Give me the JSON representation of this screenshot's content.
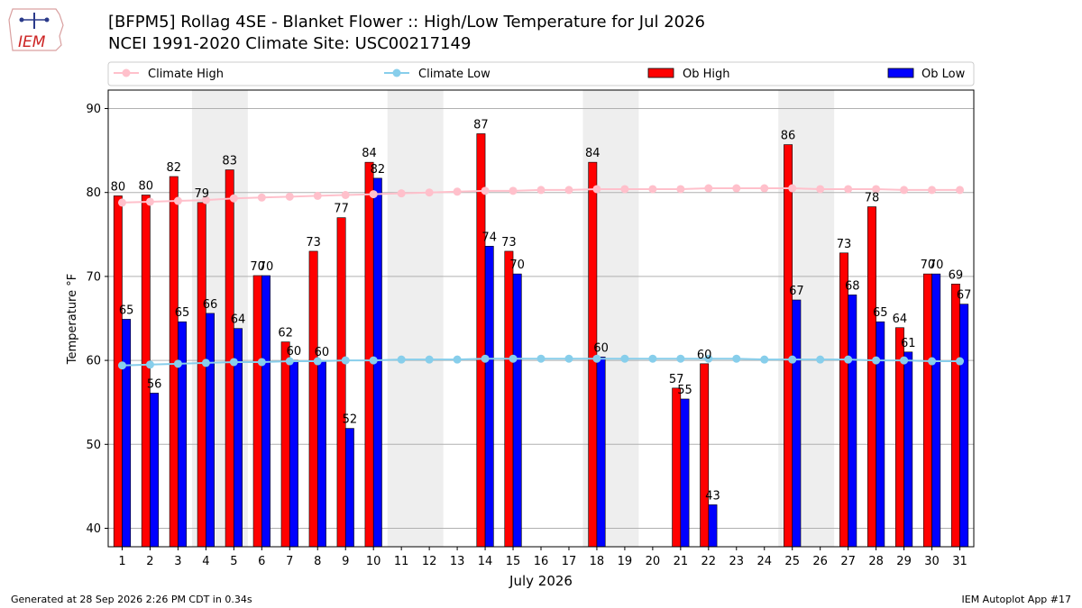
{
  "header": {
    "title_line1": "[BFPM5] Rollag 4SE - Blanket Flower :: High/Low Temperature for Jul 2026",
    "title_line2": "NCEI 1991-2020 Climate Site: USC00217149",
    "logo_text": "IEM"
  },
  "footer": {
    "generated": "Generated at 28 Sep 2026 2:26 PM CDT in 0.34s",
    "app": "IEM Autoplot App #17"
  },
  "colors": {
    "ob_high": "#ff0000",
    "ob_low": "#0000ff",
    "climate_high": "#ffc0cb",
    "climate_low": "#87ceeb",
    "weekend_shade": "#eeeeee",
    "grid": "#b0b0b0"
  },
  "chart_data": {
    "type": "bar",
    "xlabel": "July 2026",
    "ylabel": "Temperature °F",
    "ylim": [
      37.8,
      92.2
    ],
    "yticks": [
      40,
      50,
      60,
      70,
      80,
      90
    ],
    "grid": true,
    "legend_position": "top",
    "days": [
      1,
      2,
      3,
      4,
      5,
      6,
      7,
      8,
      9,
      10,
      11,
      12,
      13,
      14,
      15,
      16,
      17,
      18,
      19,
      20,
      21,
      22,
      23,
      24,
      25,
      26,
      27,
      28,
      29,
      30,
      31
    ],
    "shaded_days": [
      [
        4,
        5
      ],
      [
        11,
        12
      ],
      [
        18,
        19
      ],
      [
        25,
        26
      ]
    ],
    "series": [
      {
        "name": "Climate High",
        "kind": "line",
        "values": [
          78.8,
          78.9,
          79.0,
          79.1,
          79.3,
          79.4,
          79.5,
          79.6,
          79.7,
          79.8,
          79.9,
          80.0,
          80.1,
          80.2,
          80.2,
          80.3,
          80.3,
          80.4,
          80.4,
          80.4,
          80.4,
          80.5,
          80.5,
          80.5,
          80.5,
          80.4,
          80.4,
          80.4,
          80.3,
          80.3,
          80.3
        ]
      },
      {
        "name": "Climate Low",
        "kind": "line",
        "values": [
          59.4,
          59.5,
          59.6,
          59.7,
          59.8,
          59.8,
          59.9,
          59.9,
          60.0,
          60.0,
          60.1,
          60.1,
          60.1,
          60.2,
          60.2,
          60.2,
          60.2,
          60.2,
          60.2,
          60.2,
          60.2,
          60.2,
          60.2,
          60.1,
          60.1,
          60.1,
          60.1,
          60.0,
          60.0,
          59.9,
          59.9
        ]
      },
      {
        "name": "Ob High",
        "kind": "bar",
        "values": [
          79.6,
          79.7,
          81.9,
          78.8,
          82.7,
          70.1,
          62.2,
          73.0,
          77.0,
          83.6,
          null,
          null,
          null,
          87.0,
          73.0,
          null,
          null,
          83.6,
          null,
          null,
          56.7,
          59.6,
          null,
          null,
          85.7,
          null,
          72.8,
          78.3,
          63.9,
          70.3,
          69.1
        ],
        "labels": [
          "80",
          "80",
          "82",
          "79",
          "83",
          "70",
          "62",
          "73",
          "77",
          "84",
          "",
          "",
          "",
          "87",
          "73",
          "",
          "",
          "84",
          "",
          "",
          "57",
          "60",
          "",
          "",
          "86",
          "",
          "73",
          "78",
          "64",
          "70",
          "69"
        ]
      },
      {
        "name": "Ob Low",
        "kind": "bar",
        "values": [
          64.9,
          56.1,
          64.6,
          65.6,
          63.8,
          70.1,
          60.0,
          59.9,
          51.9,
          81.7,
          null,
          null,
          null,
          73.6,
          70.3,
          null,
          null,
          60.4,
          null,
          null,
          55.4,
          42.8,
          null,
          null,
          67.2,
          null,
          67.8,
          64.6,
          61.0,
          70.3,
          66.7
        ],
        "labels": [
          "65",
          "56",
          "65",
          "66",
          "64",
          "70",
          "60",
          "60",
          "52",
          "82",
          "",
          "",
          "",
          "74",
          "70",
          "",
          "",
          "60",
          "",
          "",
          "55",
          "43",
          "",
          "",
          "67",
          "",
          "68",
          "65",
          "61",
          "70",
          "67"
        ]
      }
    ]
  }
}
